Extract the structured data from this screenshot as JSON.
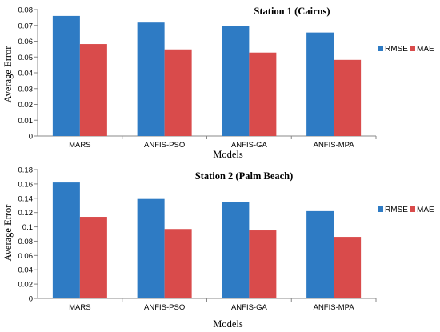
{
  "chart_data": [
    {
      "type": "bar",
      "title": "Station 1 (Cairns)",
      "xlabel": "Models",
      "ylabel": "Average Error",
      "categories": [
        "MARS",
        "ANFIS-PSO",
        "ANFIS-GA",
        "ANFIS-MPA"
      ],
      "series": [
        {
          "name": "RMSE",
          "color": "#2e7bc4",
          "values": [
            0.076,
            0.0718,
            0.0695,
            0.0655
          ]
        },
        {
          "name": "MAE",
          "color": "#d94b4b",
          "values": [
            0.0582,
            0.0548,
            0.0528,
            0.0482
          ]
        }
      ],
      "ylim": [
        0,
        0.08
      ],
      "yticks": [
        "0",
        "0.01",
        "0.02",
        "0.03",
        "0.04",
        "0.05",
        "0.06",
        "0.07",
        "0.08"
      ],
      "legend": "right",
      "grid": false
    },
    {
      "type": "bar",
      "title": "Station 2 (Palm Beach)",
      "xlabel": "Models",
      "ylabel": "Average Error",
      "categories": [
        "MARS",
        "ANFIS-PSO",
        "ANFIS-GA",
        "ANFIS-MPA"
      ],
      "series": [
        {
          "name": "RMSE",
          "color": "#2e7bc4",
          "values": [
            0.162,
            0.139,
            0.135,
            0.122
          ]
        },
        {
          "name": "MAE",
          "color": "#d94b4b",
          "values": [
            0.114,
            0.097,
            0.095,
            0.086
          ]
        }
      ],
      "ylim": [
        0,
        0.18
      ],
      "yticks": [
        "0",
        "0.02",
        "0.04",
        "0.06",
        "0.08",
        "0.1",
        "0.12",
        "0.14",
        "0.16",
        "0.18"
      ],
      "legend": "right",
      "grid": false
    }
  ]
}
